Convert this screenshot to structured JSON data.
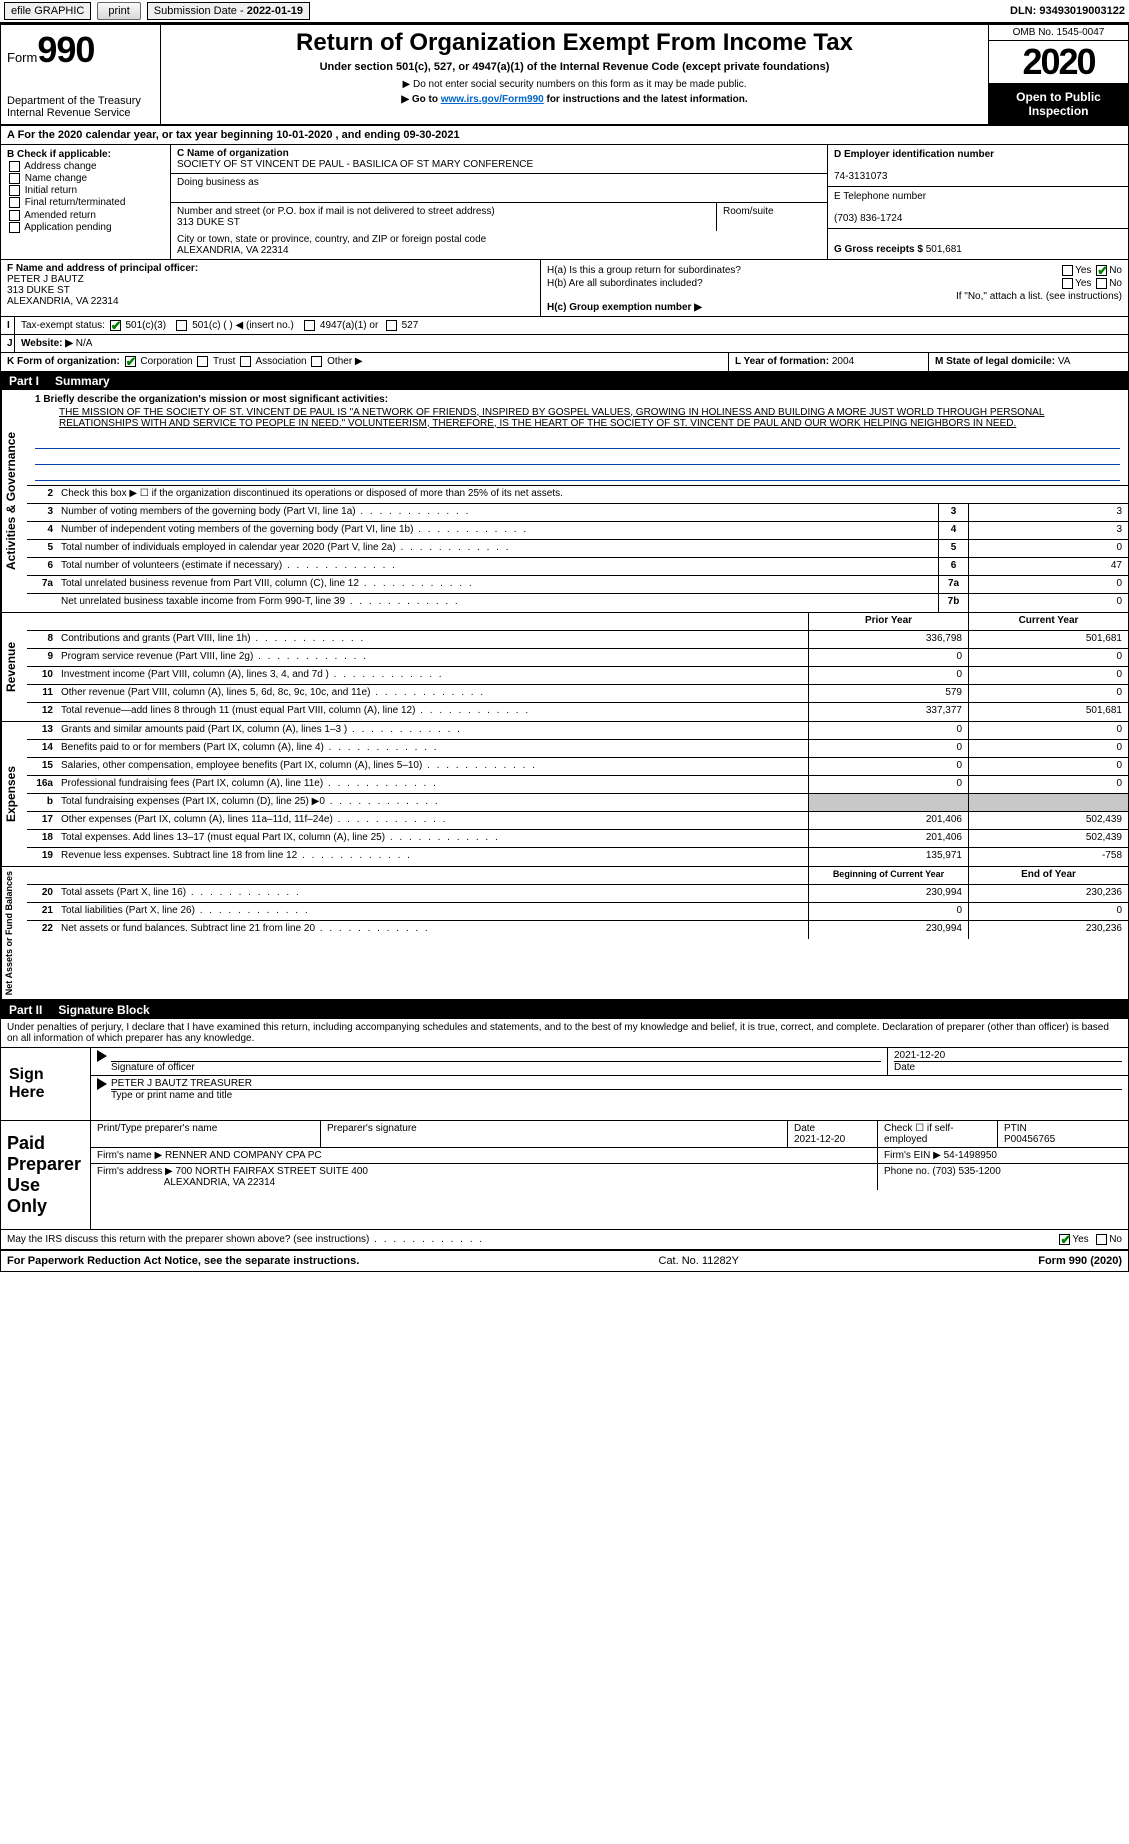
{
  "topbar": {
    "efile": "efile GRAPHIC",
    "print": "print",
    "submission_label": "Submission Date - ",
    "submission_date": "2022-01-19",
    "dln_label": "DLN:",
    "dln": "93493019003122"
  },
  "header": {
    "form_word": "Form",
    "form_number": "990",
    "dept": "Department of the Treasury",
    "irs": "Internal Revenue Service",
    "title": "Return of Organization Exempt From Income Tax",
    "subtitle": "Under section 501(c), 527, or 4947(a)(1) of the Internal Revenue Code (except private foundations)",
    "warn1": "▶ Do not enter social security numbers on this form as it may be made public.",
    "warn2_pre": "▶ Go to ",
    "warn2_link": "www.irs.gov/Form990",
    "warn2_post": " for instructions and the latest information.",
    "omb": "OMB No. 1545-0047",
    "year": "2020",
    "open": "Open to Public Inspection"
  },
  "row_a": "A For the 2020 calendar year, or tax year beginning 10-01-2020    , and ending 09-30-2021",
  "col_b": {
    "label": "B Check if applicable:",
    "items": [
      "Address change",
      "Name change",
      "Initial return",
      "Final return/terminated",
      "Amended return",
      "Application pending"
    ]
  },
  "col_c": {
    "name_label": "C Name of organization",
    "name": "SOCIETY OF ST VINCENT DE PAUL - BASILICA OF ST MARY CONFERENCE",
    "dba_label": "Doing business as",
    "dba": "",
    "addr_label": "Number and street (or P.O. box if mail is not delivered to street address)",
    "room_label": "Room/suite",
    "addr": "313 DUKE ST",
    "city_label": "City or town, state or province, country, and ZIP or foreign postal code",
    "city": "ALEXANDRIA, VA  22314"
  },
  "col_d": {
    "ein_label": "D Employer identification number",
    "ein": "74-3131073",
    "tel_label": "E Telephone number",
    "tel": "(703) 836-1724",
    "gross_label": "G Gross receipts $",
    "gross": "501,681"
  },
  "col_f": {
    "label": "F  Name and address of principal officer:",
    "name": "PETER J BAUTZ",
    "addr1": "313 DUKE ST",
    "addr2": "ALEXANDRIA, VA  22314"
  },
  "col_h": {
    "ha": "H(a)  Is this a group return for subordinates?",
    "hb": "H(b)  Are all subordinates included?",
    "hb_note": "If \"No,\" attach a list. (see instructions)",
    "hc": "H(c)  Group exemption number ▶",
    "yes": "Yes",
    "no": "No"
  },
  "row_i": {
    "label": "Tax-exempt status:",
    "o1": "501(c)(3)",
    "o2": "501(c) (  ) ◀ (insert no.)",
    "o3": "4947(a)(1) or",
    "o4": "527"
  },
  "row_j": {
    "label": "Website: ▶",
    "val": "N/A"
  },
  "row_k": {
    "label": "K Form of organization:",
    "o1": "Corporation",
    "o2": "Trust",
    "o3": "Association",
    "o4": "Other ▶"
  },
  "row_l": {
    "label": "L Year of formation:",
    "val": "2004"
  },
  "row_m": {
    "label": "M State of legal domicile:",
    "val": "VA"
  },
  "parts": {
    "p1": "Part I",
    "p1t": "Summary",
    "p2": "Part II",
    "p2t": "Signature Block"
  },
  "summary": {
    "line1_label": "1  Briefly describe the organization's mission or most significant activities:",
    "mission": "THE MISSION OF THE SOCIETY OF ST. VINCENT DE PAUL IS \"A NETWORK OF FRIENDS, INSPIRED BY GOSPEL VALUES, GROWING IN HOLINESS AND BUILDING A MORE JUST WORLD THROUGH PERSONAL RELATIONSHIPS WITH AND SERVICE TO PEOPLE IN NEED.\" VOLUNTEERISM, THEREFORE, IS THE HEART OF THE SOCIETY OF ST. VINCENT DE PAUL AND OUR WORK HELPING NEIGHBORS IN NEED.",
    "line2": "Check this box ▶ ☐ if the organization discontinued its operations or disposed of more than 25% of its net assets.",
    "sections": {
      "gov": "Activities & Governance",
      "rev": "Revenue",
      "exp": "Expenses",
      "net": "Net Assets or Fund Balances"
    },
    "col_hdr_prior": "Prior Year",
    "col_hdr_curr": "Current Year",
    "col_hdr_beg": "Beginning of Current Year",
    "col_hdr_end": "End of Year",
    "gov_lines": [
      {
        "n": "3",
        "t": "Number of voting members of the governing body (Part VI, line 1a)",
        "bx": "3",
        "v": "3"
      },
      {
        "n": "4",
        "t": "Number of independent voting members of the governing body (Part VI, line 1b)",
        "bx": "4",
        "v": "3"
      },
      {
        "n": "5",
        "t": "Total number of individuals employed in calendar year 2020 (Part V, line 2a)",
        "bx": "5",
        "v": "0"
      },
      {
        "n": "6",
        "t": "Total number of volunteers (estimate if necessary)",
        "bx": "6",
        "v": "47"
      },
      {
        "n": "7a",
        "t": "Total unrelated business revenue from Part VIII, column (C), line 12",
        "bx": "7a",
        "v": "0"
      },
      {
        "n": "",
        "t": "Net unrelated business taxable income from Form 990-T, line 39",
        "bx": "7b",
        "v": "0"
      }
    ],
    "rev_lines": [
      {
        "n": "8",
        "t": "Contributions and grants (Part VIII, line 1h)",
        "p": "336,798",
        "c": "501,681"
      },
      {
        "n": "9",
        "t": "Program service revenue (Part VIII, line 2g)",
        "p": "0",
        "c": "0"
      },
      {
        "n": "10",
        "t": "Investment income (Part VIII, column (A), lines 3, 4, and 7d )",
        "p": "0",
        "c": "0"
      },
      {
        "n": "11",
        "t": "Other revenue (Part VIII, column (A), lines 5, 6d, 8c, 9c, 10c, and 11e)",
        "p": "579",
        "c": "0"
      },
      {
        "n": "12",
        "t": "Total revenue—add lines 8 through 11 (must equal Part VIII, column (A), line 12)",
        "p": "337,377",
        "c": "501,681"
      }
    ],
    "exp_lines": [
      {
        "n": "13",
        "t": "Grants and similar amounts paid (Part IX, column (A), lines 1–3 )",
        "p": "0",
        "c": "0"
      },
      {
        "n": "14",
        "t": "Benefits paid to or for members (Part IX, column (A), line 4)",
        "p": "0",
        "c": "0"
      },
      {
        "n": "15",
        "t": "Salaries, other compensation, employee benefits (Part IX, column (A), lines 5–10)",
        "p": "0",
        "c": "0"
      },
      {
        "n": "16a",
        "t": "Professional fundraising fees (Part IX, column (A), line 11e)",
        "p": "0",
        "c": "0"
      },
      {
        "n": "b",
        "t": "Total fundraising expenses (Part IX, column (D), line 25) ▶0",
        "p": "",
        "c": "",
        "shade": true
      },
      {
        "n": "17",
        "t": "Other expenses (Part IX, column (A), lines 11a–11d, 11f–24e)",
        "p": "201,406",
        "c": "502,439"
      },
      {
        "n": "18",
        "t": "Total expenses. Add lines 13–17 (must equal Part IX, column (A), line 25)",
        "p": "201,406",
        "c": "502,439"
      },
      {
        "n": "19",
        "t": "Revenue less expenses. Subtract line 18 from line 12",
        "p": "135,971",
        "c": "-758"
      }
    ],
    "net_lines": [
      {
        "n": "20",
        "t": "Total assets (Part X, line 16)",
        "p": "230,994",
        "c": "230,236"
      },
      {
        "n": "21",
        "t": "Total liabilities (Part X, line 26)",
        "p": "0",
        "c": "0"
      },
      {
        "n": "22",
        "t": "Net assets or fund balances. Subtract line 21 from line 20",
        "p": "230,994",
        "c": "230,236"
      }
    ]
  },
  "sig": {
    "penalties": "Under penalties of perjury, I declare that I have examined this return, including accompanying schedules and statements, and to the best of my knowledge and belief, it is true, correct, and complete. Declaration of preparer (other than officer) is based on all information of which preparer has any knowledge.",
    "sign_here": "Sign Here",
    "sig_officer_label": "Signature of officer",
    "date_label": "Date",
    "sig_date": "2021-12-20",
    "officer_name": "PETER J BAUTZ TREASURER",
    "officer_label": "Type or print name and title",
    "paid": "Paid Preparer Use Only",
    "prep_name_label": "Print/Type preparer's name",
    "prep_sig_label": "Preparer's signature",
    "prep_date_label": "Date",
    "prep_date": "2021-12-20",
    "check_self": "Check ☐ if self-employed",
    "ptin_label": "PTIN",
    "ptin": "P00456765",
    "firm_name_label": "Firm's name    ▶",
    "firm_name": "RENNER AND COMPANY CPA PC",
    "firm_ein_label": "Firm's EIN ▶",
    "firm_ein": "54-1498950",
    "firm_addr_label": "Firm's address ▶",
    "firm_addr1": "700 NORTH FAIRFAX STREET SUITE 400",
    "firm_addr2": "ALEXANDRIA, VA  22314",
    "phone_label": "Phone no.",
    "phone": "(703) 535-1200",
    "discuss": "May the IRS discuss this return with the preparer shown above? (see instructions)",
    "yes": "Yes",
    "no": "No"
  },
  "footer": {
    "left": "For Paperwork Reduction Act Notice, see the separate instructions.",
    "mid": "Cat. No. 11282Y",
    "right": "Form 990 (2020)"
  },
  "colors": {
    "link": "#0066cc",
    "check_green": "#008000",
    "underline_blue": "#0044aa",
    "shade": "#c8c8c8"
  }
}
